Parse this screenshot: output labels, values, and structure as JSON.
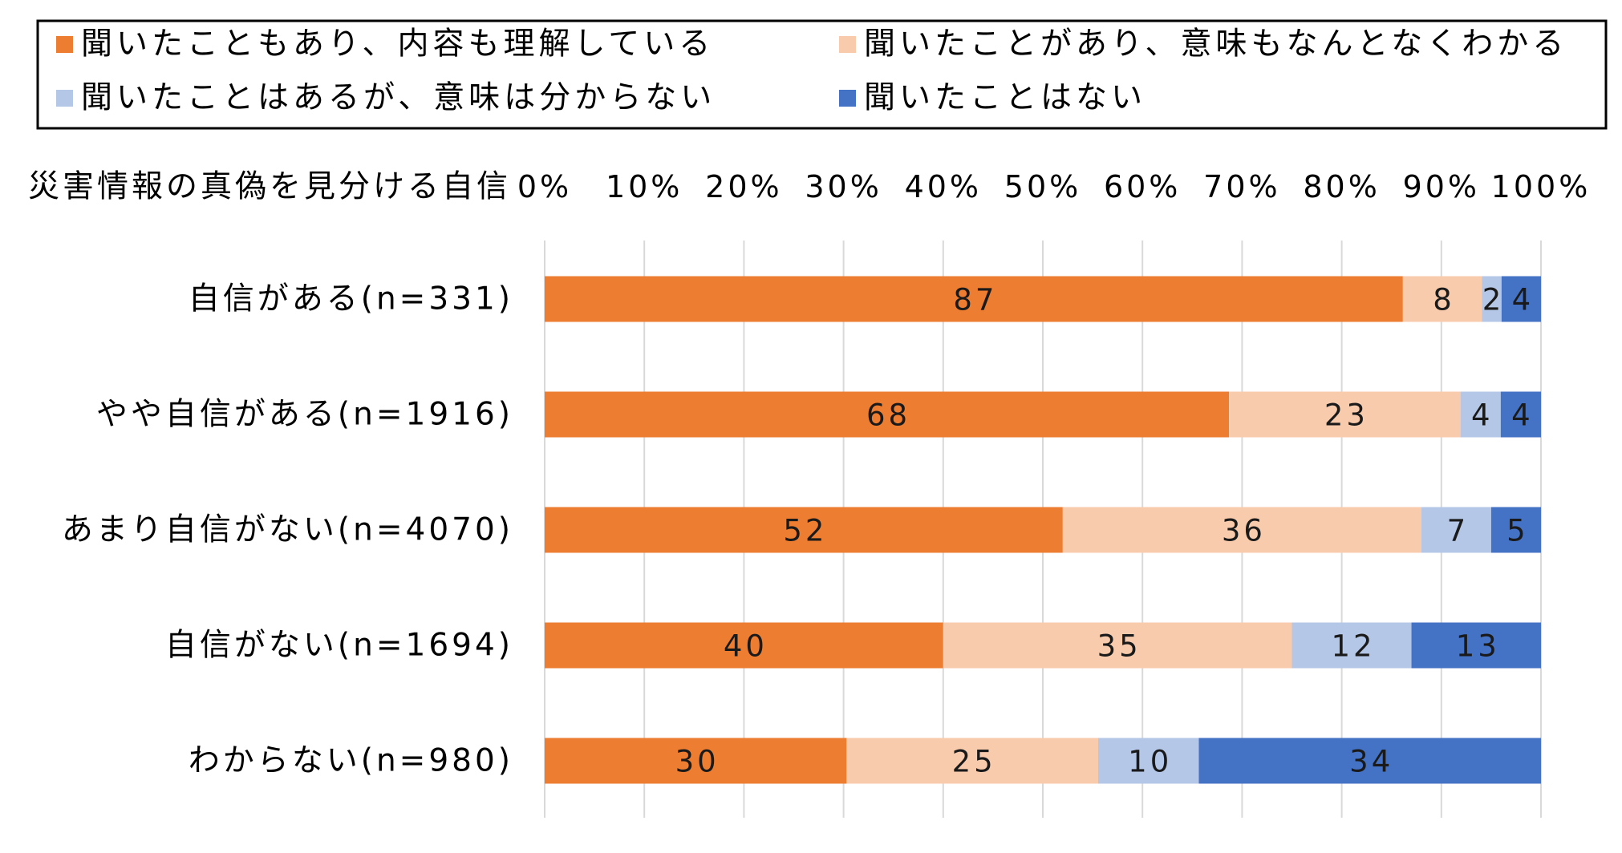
{
  "chart_data": {
    "type": "bar",
    "orientation": "horizontal",
    "stacked": "percent",
    "axis_title": "災害情報の真偽を見分ける自信",
    "xlim": [
      0,
      100
    ],
    "x_ticks": [
      "0%",
      "10%",
      "20%",
      "30%",
      "40%",
      "50%",
      "60%",
      "70%",
      "80%",
      "90%",
      "100%"
    ],
    "grid": true,
    "legend_position": "top",
    "categories": [
      "自信がある(n=331)",
      "やや自信がある(n=1916)",
      "あまり自信がない(n=4070)",
      "自信がない(n=1694)",
      "わからない(n=980)"
    ],
    "series": [
      {
        "name": "聞いたこともあり、内容も理解している",
        "color": "#ED7D31",
        "values": [
          87,
          68,
          52,
          40,
          30
        ]
      },
      {
        "name": "聞いたことがあり、意味もなんとなくわかる",
        "color": "#F8CBAD",
        "values": [
          8,
          23,
          36,
          35,
          25
        ]
      },
      {
        "name": "聞いたことはあるが、意味は分からない",
        "color": "#B4C7E7",
        "values": [
          2,
          4,
          7,
          12,
          10
        ]
      },
      {
        "name": "聞いたことはない",
        "color": "#4472C4",
        "values": [
          4,
          4,
          5,
          13,
          34
        ]
      }
    ]
  }
}
